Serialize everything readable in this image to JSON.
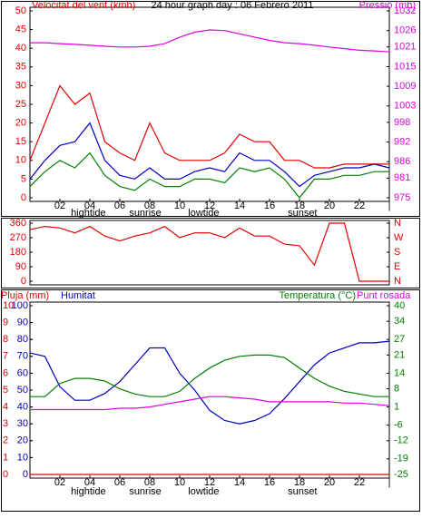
{
  "chart_data": [
    {
      "type": "line",
      "title": "24 hour graph day : 06 Febrero 2011",
      "xlim": [
        0,
        24
      ],
      "xticks": [
        {
          "value": 2,
          "label": "02"
        },
        {
          "value": 4,
          "label": "04"
        },
        {
          "value": 6,
          "label": "06"
        },
        {
          "value": 8,
          "label": "08"
        },
        10,
        12,
        14,
        16,
        18,
        20,
        22,
        {
          "value": 24,
          "label": "|"
        }
      ],
      "x": [
        0,
        1,
        2,
        3,
        4,
        5,
        6,
        7,
        8,
        9,
        10,
        11,
        12,
        13,
        14,
        15,
        16,
        17,
        18,
        19,
        20,
        21,
        22,
        23,
        24
      ],
      "ylim": [
        0,
        50
      ],
      "yticks": [
        0,
        5,
        10,
        15,
        20,
        25,
        30,
        35,
        40,
        45,
        50
      ],
      "y2lim": [
        975,
        1032
      ],
      "y2ticks": [
        975,
        981,
        986,
        992,
        998,
        1003,
        1009,
        1015,
        1021,
        1026,
        1032
      ],
      "annotations": [
        {
          "x": 3.9,
          "text": "hightide"
        },
        {
          "x": 7.7,
          "text": "sunrise"
        },
        {
          "x": 11.6,
          "text": "lowtide"
        },
        {
          "x": 18.2,
          "text": "sunset"
        }
      ],
      "series": [
        {
          "name": "Velocitat del vent (kmh)",
          "color": "#e00000",
          "values": [
            10,
            20,
            30,
            25,
            28,
            15,
            12,
            10,
            20,
            12,
            10,
            10,
            10,
            12,
            17,
            15,
            15,
            10,
            10,
            8,
            8,
            9,
            9,
            9,
            9
          ]
        },
        {
          "color": "#0000c0",
          "values": [
            5,
            10,
            14,
            15,
            20,
            10,
            6,
            5,
            8,
            5,
            5,
            7,
            8,
            7,
            12,
            10,
            10,
            7,
            3,
            6,
            7,
            8,
            8,
            9,
            8
          ]
        },
        {
          "color": "#008000",
          "values": [
            3,
            7,
            10,
            8,
            12,
            6,
            3,
            2,
            5,
            3,
            3,
            5,
            5,
            4,
            8,
            7,
            8,
            5,
            0,
            5,
            5,
            6,
            6,
            7,
            7
          ]
        },
        {
          "name": "Pressió (mb)",
          "color": "#e000e0",
          "axis": "y2",
          "values": [
            1022.3,
            1022.3,
            1022,
            1021.8,
            1021.5,
            1021.2,
            1021,
            1021,
            1021.2,
            1022,
            1024,
            1025.5,
            1026.2,
            1026,
            1025,
            1024,
            1023,
            1022.3,
            1022,
            1021.5,
            1021,
            1020.5,
            1020,
            1019.8,
            1019.5
          ]
        }
      ]
    },
    {
      "type": "line",
      "xlim": [
        0,
        24
      ],
      "x": [
        0,
        1,
        2,
        3,
        4,
        5,
        6,
        7,
        8,
        9,
        10,
        11,
        12,
        13,
        14,
        15,
        16,
        17,
        18,
        19,
        20,
        21,
        22,
        23,
        24
      ],
      "ylim": [
        0,
        360
      ],
      "yticks": [
        0,
        90,
        180,
        270,
        360
      ],
      "y2lim": [
        0,
        360
      ],
      "y2ticks": [
        {
          "value": 0,
          "label": "N"
        },
        {
          "value": 90,
          "label": "E"
        },
        {
          "value": 180,
          "label": "S"
        },
        {
          "value": 270,
          "label": "W"
        },
        {
          "value": 360,
          "label": "N"
        }
      ],
      "series": [
        {
          "color": "#e00000",
          "values": [
            320,
            340,
            330,
            300,
            340,
            280,
            250,
            280,
            300,
            340,
            270,
            300,
            300,
            270,
            330,
            280,
            280,
            230,
            220,
            100,
            360,
            360,
            0,
            0,
            0
          ]
        }
      ]
    },
    {
      "type": "line",
      "xlim": [
        0,
        24
      ],
      "xticks": [
        {
          "value": 2,
          "label": "02"
        },
        {
          "value": 4,
          "label": "04"
        },
        {
          "value": 6,
          "label": "06"
        },
        {
          "value": 8,
          "label": "08"
        },
        10,
        12,
        14,
        16,
        18,
        20,
        22,
        {
          "value": 24,
          "label": "|"
        }
      ],
      "x": [
        0,
        1,
        2,
        3,
        4,
        5,
        6,
        7,
        8,
        9,
        10,
        11,
        12,
        13,
        14,
        15,
        16,
        17,
        18,
        19,
        20,
        21,
        22,
        23,
        24
      ],
      "ylim": [
        0,
        10
      ],
      "yticks": [
        0,
        1,
        2,
        3,
        4,
        5,
        6,
        7,
        8,
        9,
        10
      ],
      "y3lim": [
        0,
        100
      ],
      "y3ticks": [
        0,
        10,
        20,
        30,
        40,
        50,
        60,
        70,
        80,
        90,
        100
      ],
      "y2lim": [
        -25,
        40
      ],
      "y2ticks": [
        -25,
        -19,
        -12,
        -6,
        1,
        8,
        14,
        21,
        27,
        34,
        40
      ],
      "annotations": [
        {
          "x": 3.9,
          "text": "hightide"
        },
        {
          "x": 7.7,
          "text": "sunrise"
        },
        {
          "x": 11.6,
          "text": "lowtide"
        },
        {
          "x": 18.2,
          "text": "sunset"
        }
      ],
      "series": [
        {
          "name": "Pluja (mm)",
          "color": "#e00000",
          "values": [
            0,
            0,
            0,
            0,
            0,
            0,
            0,
            0,
            0,
            0,
            0,
            0,
            0,
            0,
            0,
            0,
            0,
            0,
            0,
            0,
            0,
            0,
            0,
            0,
            0
          ]
        },
        {
          "name": "Humitat",
          "color": "#0000c0",
          "axis": "y3",
          "values": [
            72,
            70,
            52,
            44,
            44,
            48,
            55,
            65,
            75,
            75,
            60,
            50,
            38,
            32,
            30,
            32,
            36,
            45,
            55,
            65,
            72,
            75,
            78,
            78,
            79
          ]
        },
        {
          "name": "Temperatura (°C)",
          "color": "#008000",
          "axis": "y2",
          "values": [
            5,
            5,
            10,
            12,
            12,
            11,
            8,
            6,
            5,
            5,
            7,
            12,
            16,
            19,
            20.5,
            21,
            21,
            20,
            16,
            12,
            9,
            7,
            6,
            5,
            5
          ]
        },
        {
          "name": "Punt rosada",
          "color": "#e000e0",
          "axis": "y2",
          "values": [
            0,
            0,
            0,
            0,
            0,
            0,
            0.5,
            0.5,
            1,
            2,
            3,
            4,
            5,
            5,
            4.5,
            4,
            3,
            3,
            3,
            3,
            3,
            2.5,
            2.5,
            2,
            1.5
          ]
        }
      ]
    }
  ]
}
